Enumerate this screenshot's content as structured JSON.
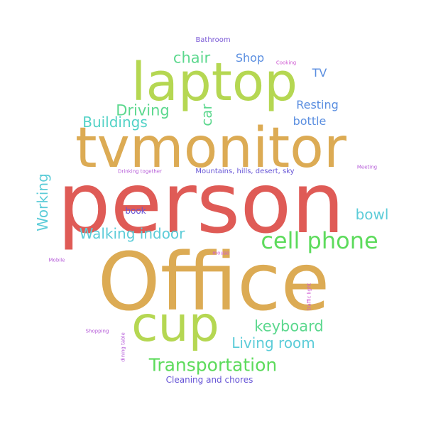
{
  "colors": {
    "background": "#ffffff",
    "red": "#df5b56",
    "gold": "#dcab54",
    "lime": "#b5d752",
    "green": "#5ddb5c",
    "mint": "#5cd88e",
    "teal": "#52d2c6",
    "cyan": "#5cccd8",
    "blue": "#5a8ee0",
    "indigo": "#6654d6",
    "purple": "#7b5ad6",
    "magenta": "#b55ad8",
    "pink": "#cf5ad2"
  },
  "words": [
    {
      "text": "person",
      "color": "red"
    },
    {
      "text": "Office",
      "color": "gold"
    },
    {
      "text": "tvmonitor",
      "color": "gold"
    },
    {
      "text": "laptop",
      "color": "lime"
    },
    {
      "text": "cup",
      "color": "lime"
    },
    {
      "text": "cell phone",
      "color": "green"
    },
    {
      "text": "Transportation",
      "color": "green"
    },
    {
      "text": "keyboard",
      "color": "mint"
    },
    {
      "text": "Driving",
      "color": "mint"
    },
    {
      "text": "chair",
      "color": "mint"
    },
    {
      "text": "Walking indoor",
      "color": "cyan"
    },
    {
      "text": "Living room",
      "color": "cyan"
    },
    {
      "text": "Buildings",
      "color": "teal"
    },
    {
      "text": "Working",
      "color": "cyan"
    },
    {
      "text": "bowl",
      "color": "cyan"
    },
    {
      "text": "car",
      "color": "mint"
    },
    {
      "text": "Shop",
      "color": "blue"
    },
    {
      "text": "Resting",
      "color": "blue"
    },
    {
      "text": "bottle",
      "color": "blue"
    },
    {
      "text": "TV",
      "color": "blue"
    },
    {
      "text": "Cleaning and chores",
      "color": "indigo"
    },
    {
      "text": "Mountains, hills, desert, sky",
      "color": "indigo"
    },
    {
      "text": "book",
      "color": "indigo"
    },
    {
      "text": "Bathroom",
      "color": "purple"
    },
    {
      "text": "Drinking together",
      "color": "magenta"
    },
    {
      "text": "Meeting",
      "color": "magenta"
    },
    {
      "text": "mouse",
      "color": "pink"
    },
    {
      "text": "Mobile",
      "color": "magenta"
    },
    {
      "text": "Shopping",
      "color": "magenta"
    },
    {
      "text": "dining table",
      "color": "magenta"
    },
    {
      "text": "traffic light",
      "color": "pink"
    },
    {
      "text": "Cooking",
      "color": "pink"
    }
  ]
}
